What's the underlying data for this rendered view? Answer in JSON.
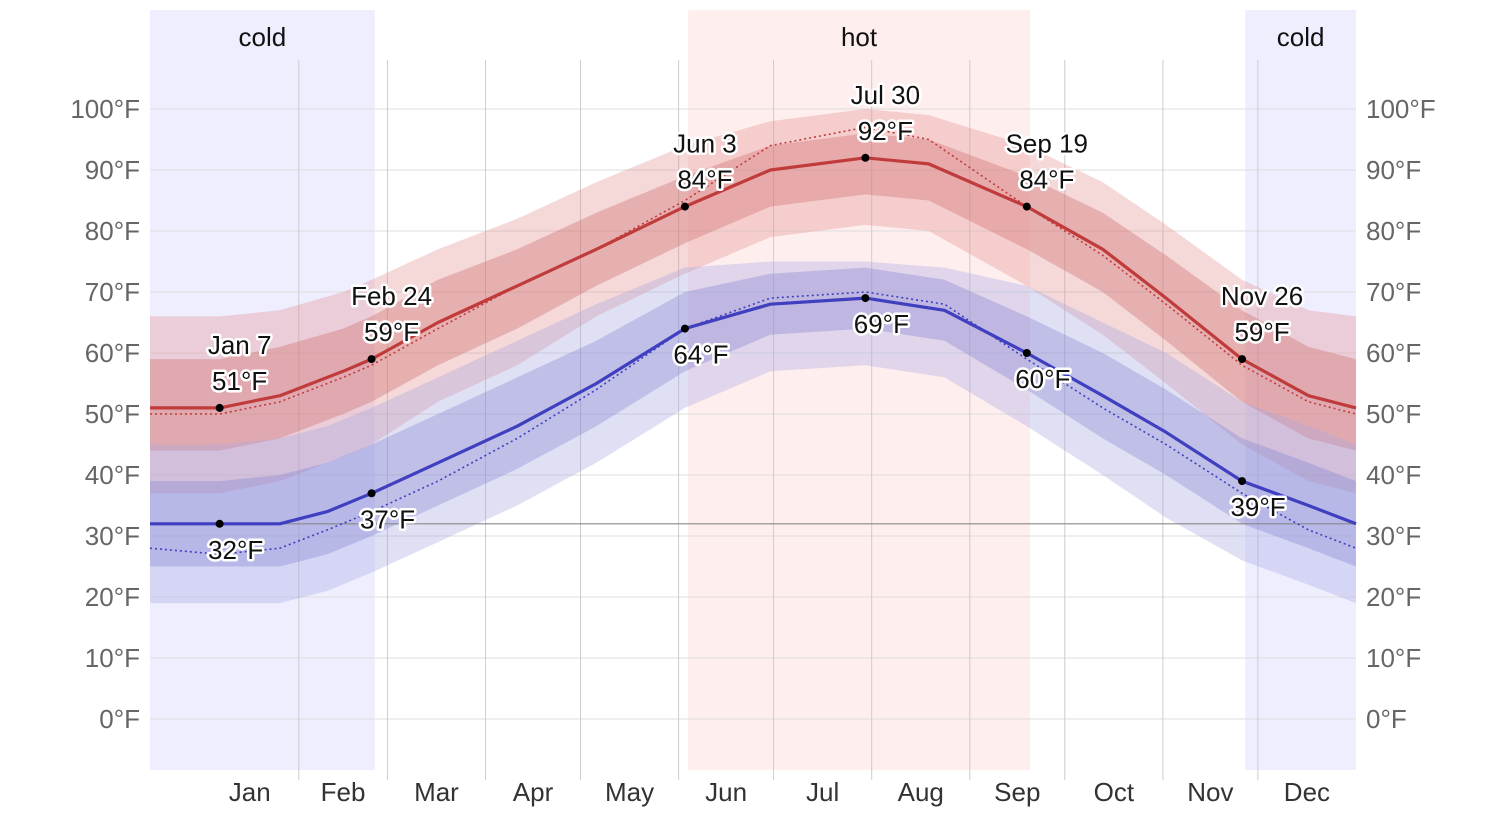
{
  "chart_data": {
    "type": "area",
    "x_unit": "day_of_year",
    "ylim": [
      -8,
      108
    ],
    "y_ticks": [
      0,
      10,
      20,
      30,
      40,
      50,
      60,
      70,
      80,
      90,
      100
    ],
    "y_tick_labels": [
      "0°F",
      "10°F",
      "20°F",
      "30°F",
      "40°F",
      "50°F",
      "60°F",
      "70°F",
      "80°F",
      "90°F",
      "100°F"
    ],
    "months": [
      "Jan",
      "Feb",
      "Mar",
      "Apr",
      "May",
      "Jun",
      "Jul",
      "Aug",
      "Sep",
      "Oct",
      "Nov",
      "Dec"
    ],
    "month_start_days": [
      0,
      31,
      59,
      90,
      120,
      151,
      181,
      212,
      243,
      273,
      304,
      334,
      365
    ],
    "freezing_line": 32,
    "seasons": [
      {
        "label": "cold",
        "start_day": -16,
        "end_day": 55,
        "color": "#eeeeff"
      },
      {
        "label": "hot",
        "start_day": 154,
        "end_day": 262,
        "color": "#ffeeee"
      },
      {
        "label": "cold",
        "start_day": 330,
        "end_day": 365,
        "color": "#eeeeff"
      }
    ],
    "series": [
      {
        "key": "high",
        "color": "#c03b3b",
        "band_outer_color": "#e39090",
        "band_inner_color": "#cf6868",
        "points": [
          {
            "day": -16,
            "mean": 51,
            "inner": [
              44,
              59
            ],
            "outer": [
              37,
              66
            ],
            "recent": 50
          },
          {
            "day": 6,
            "mean": 51,
            "inner": [
              44,
              59
            ],
            "outer": [
              37,
              66
            ],
            "recent": 50
          },
          {
            "day": 25,
            "mean": 53,
            "inner": [
              46,
              61
            ],
            "outer": [
              39,
              67
            ],
            "recent": 52
          },
          {
            "day": 45,
            "mean": 57,
            "inner": [
              50,
              64
            ],
            "outer": [
              43,
              70
            ],
            "recent": 56
          },
          {
            "day": 54,
            "mean": 59,
            "inner": [
              52,
              66
            ],
            "outer": [
              45,
              72
            ],
            "recent": 58
          },
          {
            "day": 75,
            "mean": 65,
            "inner": [
              58,
              72
            ],
            "outer": [
              52,
              77
            ],
            "recent": 64
          },
          {
            "day": 100,
            "mean": 71,
            "inner": [
              64,
              77
            ],
            "outer": [
              58,
              82
            ],
            "recent": 71
          },
          {
            "day": 125,
            "mean": 77,
            "inner": [
              71,
              83
            ],
            "outer": [
              66,
              88
            ],
            "recent": 77
          },
          {
            "day": 153,
            "mean": 84,
            "inner": [
              78,
              89
            ],
            "outer": [
              73,
              94
            ],
            "recent": 85
          },
          {
            "day": 180,
            "mean": 90,
            "inner": [
              84,
              94
            ],
            "outer": [
              79,
              98
            ],
            "recent": 94
          },
          {
            "day": 210,
            "mean": 92,
            "inner": [
              86,
              96
            ],
            "outer": [
              81,
              100
            ],
            "recent": 97
          },
          {
            "day": 230,
            "mean": 91,
            "inner": [
              85,
              95
            ],
            "outer": [
              80,
              99
            ],
            "recent": 95
          },
          {
            "day": 261,
            "mean": 84,
            "inner": [
              77,
              89
            ],
            "outer": [
              71,
              94
            ],
            "recent": 84
          },
          {
            "day": 285,
            "mean": 77,
            "inner": [
              70,
              83
            ],
            "outer": [
              63,
              88
            ],
            "recent": 76
          },
          {
            "day": 305,
            "mean": 69,
            "inner": [
              62,
              76
            ],
            "outer": [
              55,
              81
            ],
            "recent": 68
          },
          {
            "day": 329,
            "mean": 59,
            "inner": [
              52,
              67
            ],
            "outer": [
              45,
              72
            ],
            "recent": 58
          },
          {
            "day": 350,
            "mean": 53,
            "inner": [
              46,
              61
            ],
            "outer": [
              39,
              67
            ],
            "recent": 52
          },
          {
            "day": 365,
            "mean": 51,
            "inner": [
              44,
              59
            ],
            "outer": [
              37,
              66
            ],
            "recent": 50
          }
        ]
      },
      {
        "key": "low",
        "color": "#3f3fbf",
        "band_outer_color": "#a7a7e3",
        "band_inner_color": "#8282d2",
        "points": [
          {
            "day": -16,
            "mean": 32,
            "inner": [
              25,
              39
            ],
            "outer": [
              19,
              45
            ],
            "recent": 28
          },
          {
            "day": 6,
            "mean": 32,
            "inner": [
              25,
              39
            ],
            "outer": [
              19,
              45
            ],
            "recent": 27
          },
          {
            "day": 25,
            "mean": 32,
            "inner": [
              25,
              40
            ],
            "outer": [
              19,
              46
            ],
            "recent": 28
          },
          {
            "day": 40,
            "mean": 34,
            "inner": [
              27,
              42
            ],
            "outer": [
              21,
              48
            ],
            "recent": 31
          },
          {
            "day": 54,
            "mean": 37,
            "inner": [
              30,
              45
            ],
            "outer": [
              24,
              51
            ],
            "recent": 34
          },
          {
            "day": 75,
            "mean": 42,
            "inner": [
              35,
              50
            ],
            "outer": [
              29,
              56
            ],
            "recent": 39
          },
          {
            "day": 100,
            "mean": 48,
            "inner": [
              41,
              56
            ],
            "outer": [
              35,
              62
            ],
            "recent": 46
          },
          {
            "day": 125,
            "mean": 55,
            "inner": [
              48,
              62
            ],
            "outer": [
              42,
              68
            ],
            "recent": 54
          },
          {
            "day": 153,
            "mean": 64,
            "inner": [
              57,
              70
            ],
            "outer": [
              51,
              74
            ],
            "recent": 64
          },
          {
            "day": 180,
            "mean": 68,
            "inner": [
              63,
              73
            ],
            "outer": [
              57,
              75
            ],
            "recent": 69
          },
          {
            "day": 210,
            "mean": 69,
            "inner": [
              64,
              74
            ],
            "outer": [
              58,
              75
            ],
            "recent": 70
          },
          {
            "day": 235,
            "mean": 67,
            "inner": [
              62,
              72
            ],
            "outer": [
              56,
              74
            ],
            "recent": 68
          },
          {
            "day": 261,
            "mean": 60,
            "inner": [
              54,
              66
            ],
            "outer": [
              48,
              71
            ],
            "recent": 59
          },
          {
            "day": 285,
            "mean": 53,
            "inner": [
              46,
              60
            ],
            "outer": [
              40,
              65
            ],
            "recent": 51
          },
          {
            "day": 305,
            "mean": 47,
            "inner": [
              40,
              54
            ],
            "outer": [
              33,
              60
            ],
            "recent": 45
          },
          {
            "day": 329,
            "mean": 39,
            "inner": [
              32,
              46
            ],
            "outer": [
              26,
              52
            ],
            "recent": 37
          },
          {
            "day": 350,
            "mean": 35,
            "inner": [
              28,
              42
            ],
            "outer": [
              22,
              48
            ],
            "recent": 31
          },
          {
            "day": 365,
            "mean": 32,
            "inner": [
              25,
              39
            ],
            "outer": [
              19,
              45
            ],
            "recent": 28
          }
        ]
      }
    ],
    "annotations": [
      {
        "date": "Jan 7",
        "day": 6,
        "value": 51,
        "value_label": "51°F",
        "series": "high",
        "position": "above"
      },
      {
        "date": "Jan 7",
        "day": 6,
        "value": 32,
        "value_label": "32°F",
        "series": "low",
        "position": "below"
      },
      {
        "date": "Feb 24",
        "day": 54,
        "value": 59,
        "value_label": "59°F",
        "series": "high",
        "position": "above"
      },
      {
        "date": "Feb 24",
        "day": 54,
        "value": 37,
        "value_label": "37°F",
        "series": "low",
        "position": "below"
      },
      {
        "date": "Jun 3",
        "day": 153,
        "value": 84,
        "value_label": "84°F",
        "series": "high",
        "position": "above"
      },
      {
        "date": "Jun 3",
        "day": 153,
        "value": 64,
        "value_label": "64°F",
        "series": "low",
        "position": "below"
      },
      {
        "date": "Jul 30",
        "day": 210,
        "value": 92,
        "value_label": "92°F",
        "series": "high",
        "position": "above"
      },
      {
        "date": "Jul 30",
        "day": 210,
        "value": 69,
        "value_label": "69°F",
        "series": "low",
        "position": "below"
      },
      {
        "date": "Sep 19",
        "day": 261,
        "value": 84,
        "value_label": "84°F",
        "series": "high",
        "position": "above"
      },
      {
        "date": "Sep 19",
        "day": 261,
        "value": 60,
        "value_label": "60°F",
        "series": "low",
        "position": "below"
      },
      {
        "date": "Nov 26",
        "day": 329,
        "value": 59,
        "value_label": "59°F",
        "series": "high",
        "position": "above"
      },
      {
        "date": "Nov 26",
        "day": 329,
        "value": 39,
        "value_label": "39°F",
        "series": "low",
        "position": "below"
      }
    ]
  }
}
